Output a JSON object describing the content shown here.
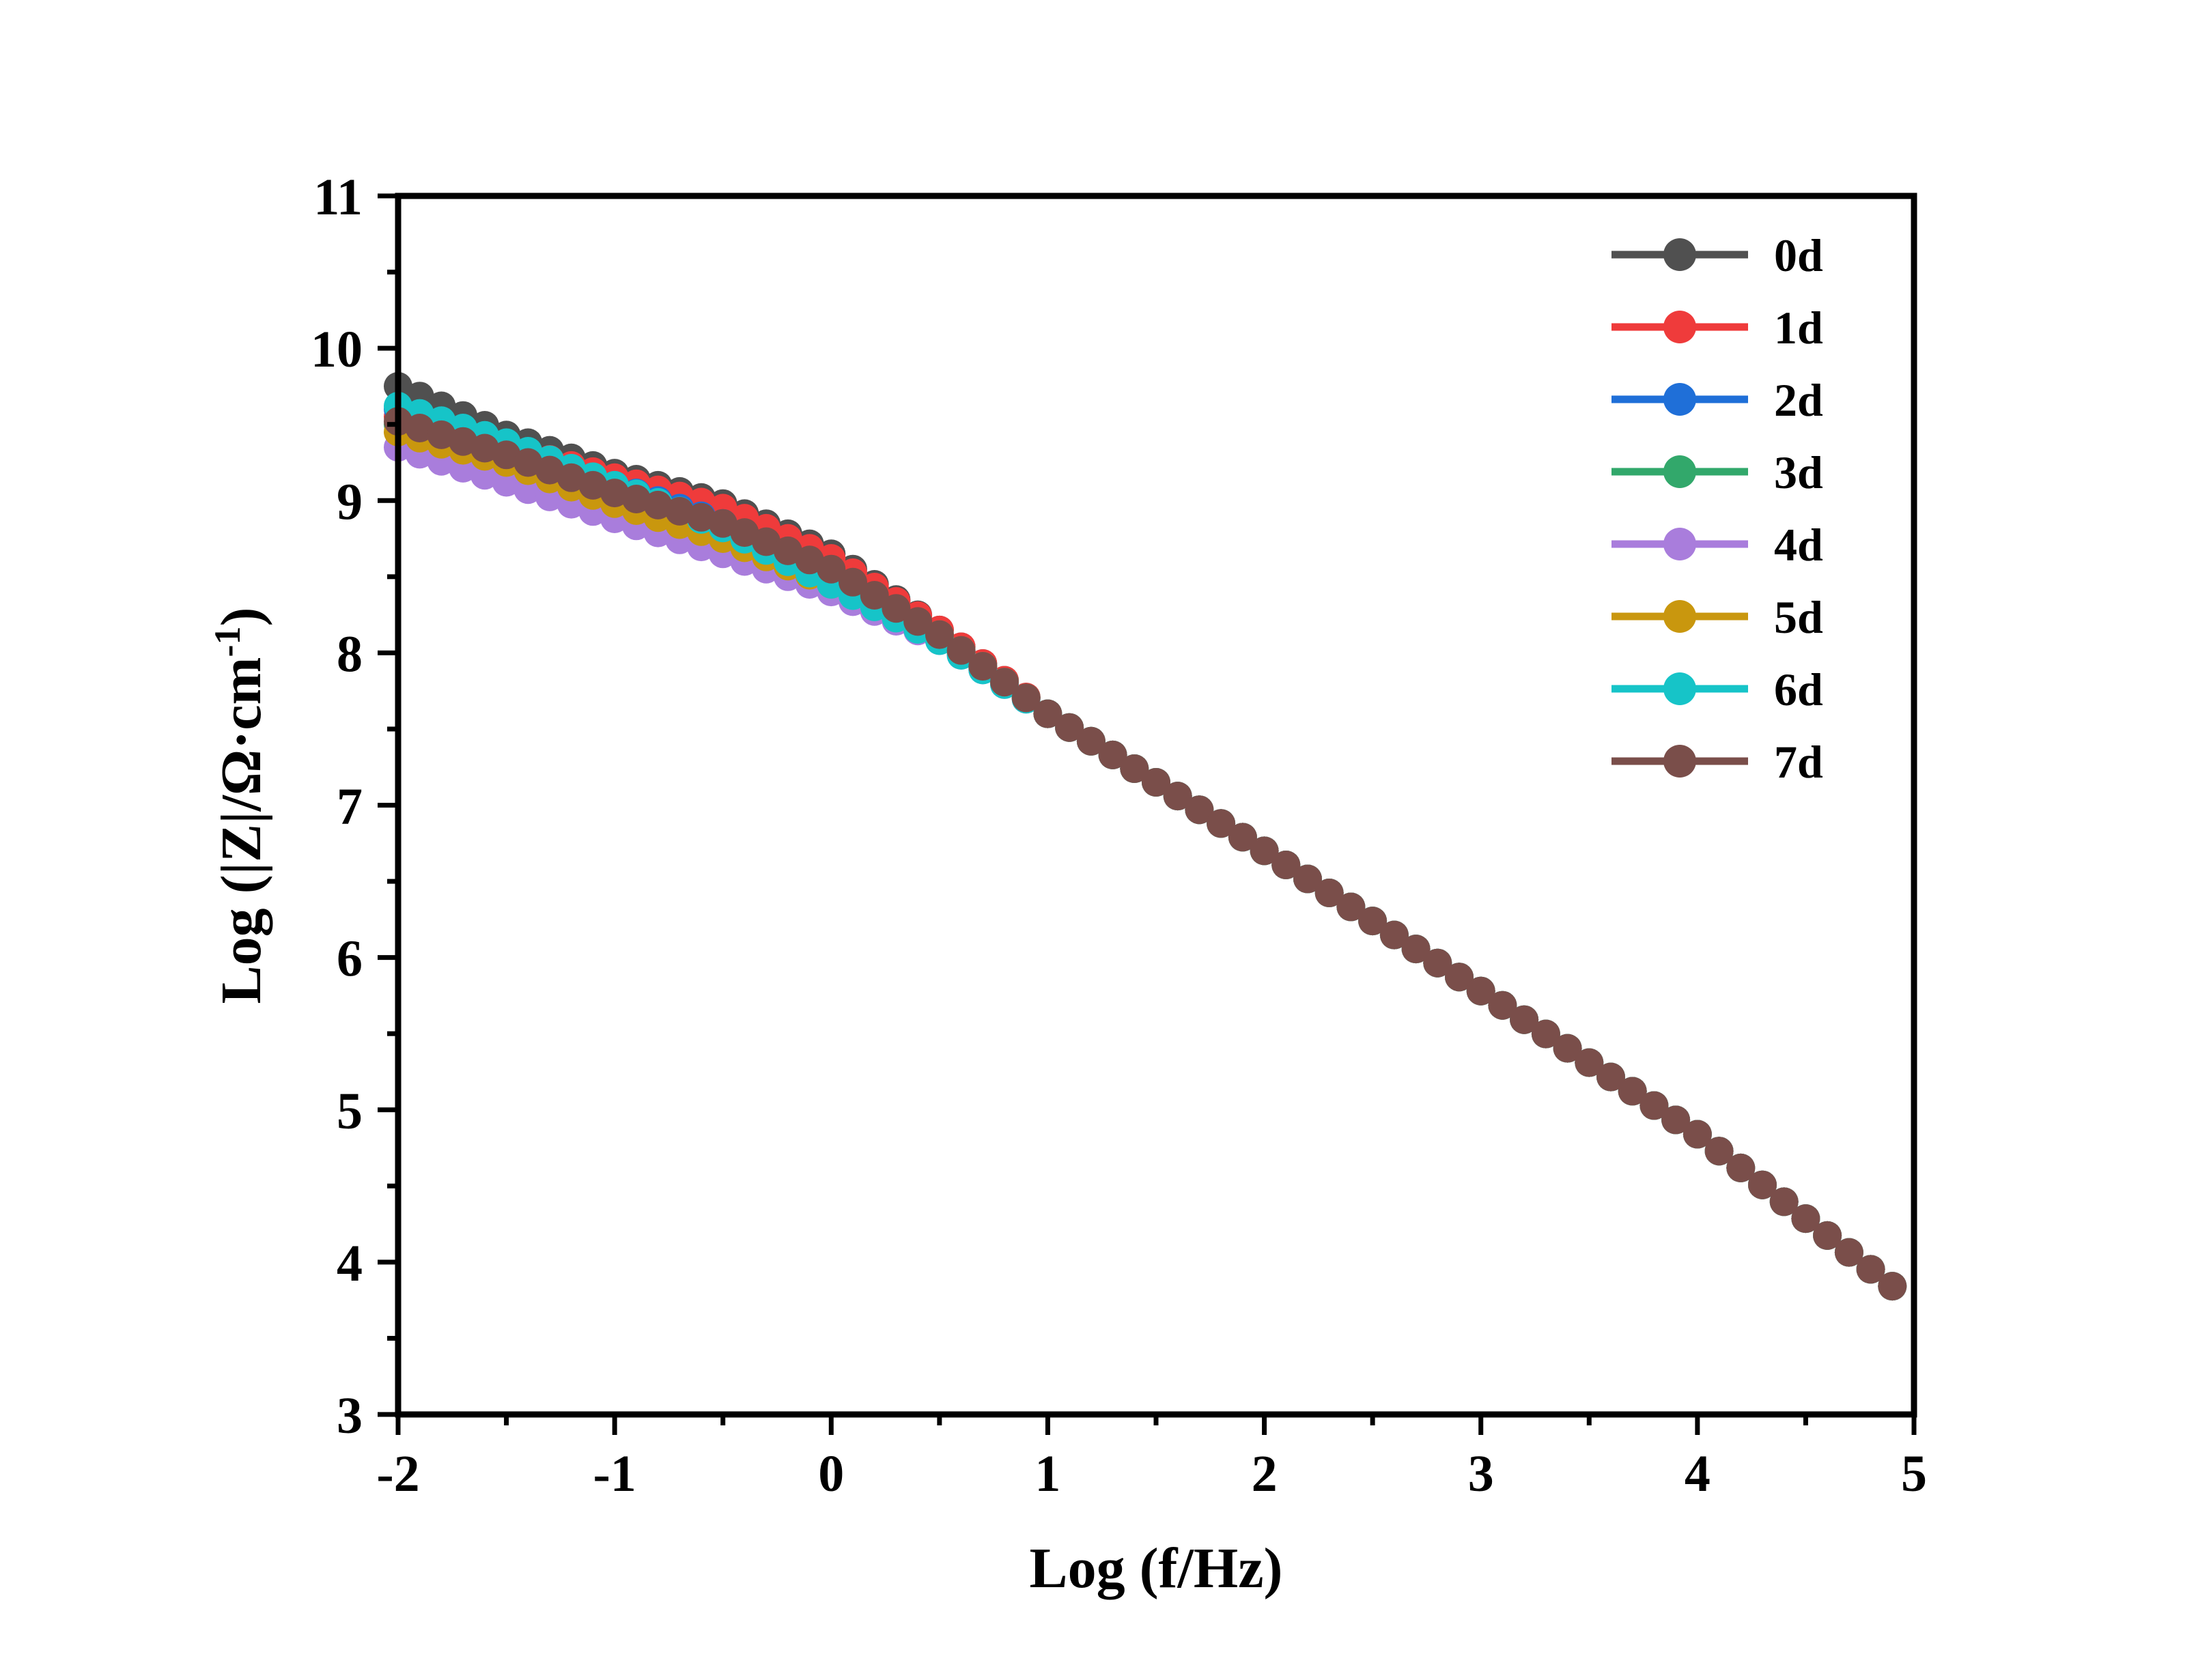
{
  "chart_data": {
    "type": "line",
    "xlabel": "Log (f/Hz)",
    "ylabel": {
      "main": "Log (|Z|/Ω·cm",
      "superscript": "-1",
      "close": ")"
    },
    "xlim": [
      -2,
      5
    ],
    "ylim": [
      3,
      11
    ],
    "x_ticks": [
      "-2",
      "-1",
      "0",
      "1",
      "2",
      "3",
      "4",
      "5"
    ],
    "y_ticks": [
      "3",
      "4",
      "5",
      "6",
      "7",
      "8",
      "9",
      "10",
      "11"
    ],
    "grid": false,
    "legend_position": "top-right",
    "marker": "circle",
    "series": [
      {
        "name": "0d",
        "color": "#505050",
        "x": [
          -2,
          -1.5,
          -1,
          -0.5,
          0,
          0.5,
          1,
          2,
          3,
          4,
          4.92
        ],
        "y": [
          9.75,
          9.43,
          9.18,
          8.98,
          8.65,
          8.15,
          7.6,
          6.7,
          5.78,
          4.84,
          3.82
        ]
      },
      {
        "name": "1d",
        "color": "#ef3b3b",
        "x": [
          -2,
          -1.5,
          -1,
          -0.5,
          0,
          0.5,
          1,
          2,
          3,
          4,
          4.92
        ],
        "y": [
          9.55,
          9.35,
          9.15,
          8.95,
          8.62,
          8.15,
          7.6,
          6.7,
          5.78,
          4.84,
          3.82
        ]
      },
      {
        "name": "2d",
        "color": "#1f6fd8",
        "x": [
          -2,
          -1.5,
          -1,
          -0.5,
          0,
          0.5,
          1,
          2,
          3,
          4,
          4.92
        ],
        "y": [
          9.6,
          9.37,
          9.1,
          8.85,
          8.5,
          8.12,
          7.6,
          6.7,
          5.78,
          4.84,
          3.82
        ]
      },
      {
        "name": "3d",
        "color": "#32a86b",
        "x": [
          -2,
          -1.5,
          -1,
          -0.5,
          0,
          0.5,
          1,
          2,
          3,
          4,
          4.92
        ],
        "y": [
          9.5,
          9.3,
          9.05,
          8.8,
          8.45,
          8.1,
          7.6,
          6.7,
          5.78,
          4.84,
          3.82
        ]
      },
      {
        "name": "4d",
        "color": "#a97ddc",
        "x": [
          -2,
          -1.5,
          -1,
          -0.5,
          0,
          0.5,
          1,
          2,
          3,
          4,
          4.92
        ],
        "y": [
          9.35,
          9.12,
          8.88,
          8.65,
          8.4,
          8.08,
          7.6,
          6.7,
          5.78,
          4.84,
          3.82
        ]
      },
      {
        "name": "5d",
        "color": "#c9970e",
        "x": [
          -2,
          -1.5,
          -1,
          -0.5,
          0,
          0.5,
          1,
          2,
          3,
          4,
          4.92
        ],
        "y": [
          9.45,
          9.25,
          8.98,
          8.75,
          8.45,
          8.12,
          7.6,
          6.7,
          5.78,
          4.84,
          3.82
        ]
      },
      {
        "name": "6d",
        "color": "#16c4c8",
        "x": [
          -2,
          -1.5,
          -1,
          -0.5,
          0,
          0.5,
          1,
          2,
          3,
          4,
          4.92
        ],
        "y": [
          9.62,
          9.38,
          9.1,
          8.82,
          8.45,
          8.08,
          7.6,
          6.7,
          5.78,
          4.84,
          3.82
        ]
      },
      {
        "name": "7d",
        "color": "#7a4e4a",
        "x": [
          -2,
          -1.5,
          -1,
          -0.5,
          0,
          0.5,
          1,
          2,
          3,
          4,
          4.92
        ],
        "y": [
          9.52,
          9.3,
          9.05,
          8.85,
          8.55,
          8.12,
          7.6,
          6.7,
          5.78,
          4.84,
          3.82
        ]
      }
    ]
  }
}
